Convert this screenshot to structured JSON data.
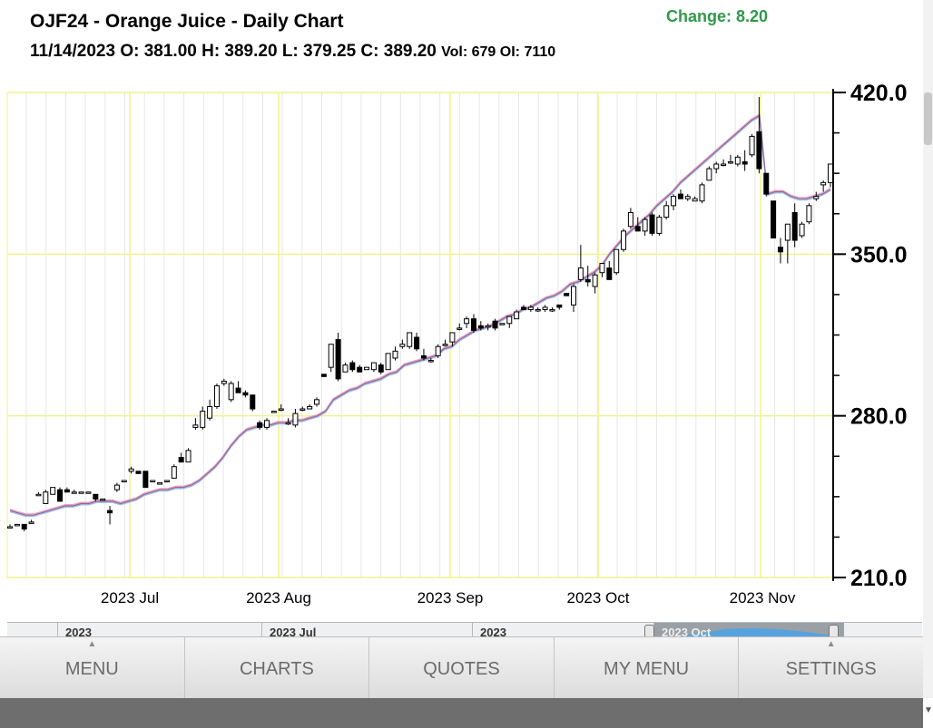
{
  "header": {
    "title": "OJF24 - Orange Juice - Daily Chart",
    "change": "Change: 8.20",
    "ohlc": "11/14/2023 O: 381.00 H: 389.20 L: 379.25 C: 389.20",
    "vol_oi": "Vol: 679 OI: 7110"
  },
  "colors": {
    "change": "#2e9a48",
    "grid_major": "#f2f28c",
    "grid_minor": "#e6e6e6",
    "ma_fast": "#f0a0b8",
    "ma_slow": "#a0c0e8",
    "ma_main": "#8a6aa0"
  },
  "chart_data": {
    "type": "candlestick",
    "y_axis_labels": [
      "420.0",
      "350.0",
      "280.0",
      "210.0"
    ],
    "ylim": [
      210,
      420
    ],
    "x_axis_labels": [
      "2023 Jul",
      "2023 Aug",
      "2023 Sep",
      "2023 Oct",
      "2023 Nov"
    ],
    "moving_average": [
      239,
      238,
      237,
      237,
      238,
      239,
      240,
      241,
      241,
      242,
      242,
      243,
      243,
      243,
      242,
      243,
      244,
      246,
      247,
      248,
      248,
      249,
      249,
      250,
      252,
      255,
      258,
      262,
      267,
      271,
      274,
      275,
      276,
      276,
      277,
      277,
      278,
      278,
      279,
      280,
      282,
      287,
      289,
      291,
      292,
      294,
      295,
      296,
      298,
      299,
      302,
      303,
      304,
      305,
      306,
      309,
      310,
      313,
      315,
      317,
      318,
      319,
      321,
      323,
      324,
      326,
      327,
      329,
      331,
      332,
      334,
      337,
      338,
      340,
      342,
      345,
      350,
      354,
      358,
      361,
      364,
      367,
      371,
      374,
      377,
      381,
      384,
      387,
      390,
      393,
      396,
      399,
      402,
      405,
      408,
      410,
      376,
      377,
      377,
      375,
      374,
      374,
      375,
      376,
      378
    ],
    "candles": [
      {
        "o": 232,
        "h": 233,
        "l": 232,
        "c": 232
      },
      {
        "o": 233,
        "h": 233,
        "l": 233,
        "c": 233
      },
      {
        "o": 233,
        "h": 233,
        "l": 230,
        "c": 231
      },
      {
        "o": 234,
        "h": 235,
        "l": 234,
        "c": 234
      },
      {
        "o": 246,
        "h": 247,
        "l": 246,
        "c": 246
      },
      {
        "o": 242,
        "h": 248,
        "l": 242,
        "c": 247
      },
      {
        "o": 246,
        "h": 249,
        "l": 246,
        "c": 249
      },
      {
        "o": 248,
        "h": 249,
        "l": 243,
        "c": 243
      },
      {
        "o": 248,
        "h": 249,
        "l": 248,
        "c": 247
      },
      {
        "o": 247,
        "h": 248,
        "l": 247,
        "c": 247
      },
      {
        "o": 247,
        "h": 247,
        "l": 247,
        "c": 247
      },
      {
        "o": 247,
        "h": 247,
        "l": 247,
        "c": 247
      },
      {
        "o": 246,
        "h": 246,
        "l": 243,
        "c": 244
      },
      {
        "o": 244,
        "h": 244,
        "l": 244,
        "c": 244
      },
      {
        "o": 239,
        "h": 241,
        "l": 233,
        "c": 238
      },
      {
        "o": 248,
        "h": 251,
        "l": 247,
        "c": 250
      },
      {
        "o": 252,
        "h": 252,
        "l": 252,
        "c": 252
      },
      {
        "o": 256,
        "h": 258,
        "l": 255,
        "c": 257
      },
      {
        "o": 256,
        "h": 256,
        "l": 255,
        "c": 255
      },
      {
        "o": 256,
        "h": 256,
        "l": 249,
        "c": 249
      },
      {
        "o": 252,
        "h": 252,
        "l": 252,
        "c": 252
      },
      {
        "o": 251,
        "h": 251,
        "l": 251,
        "c": 251
      },
      {
        "o": 252,
        "h": 252,
        "l": 252,
        "c": 252
      },
      {
        "o": 253,
        "h": 259,
        "l": 253,
        "c": 258
      },
      {
        "o": 262,
        "h": 264,
        "l": 260,
        "c": 260
      },
      {
        "o": 260,
        "h": 266,
        "l": 260,
        "c": 265
      },
      {
        "o": 275,
        "h": 279,
        "l": 274,
        "c": 276
      },
      {
        "o": 275,
        "h": 284,
        "l": 274,
        "c": 282
      },
      {
        "o": 279,
        "h": 287,
        "l": 278,
        "c": 284
      },
      {
        "o": 284,
        "h": 294,
        "l": 283,
        "c": 293
      },
      {
        "o": 294,
        "h": 296,
        "l": 293,
        "c": 295
      },
      {
        "o": 287,
        "h": 295,
        "l": 286,
        "c": 294
      },
      {
        "o": 292,
        "h": 295,
        "l": 291,
        "c": 290
      },
      {
        "o": 290,
        "h": 291,
        "l": 288,
        "c": 289
      },
      {
        "o": 289,
        "h": 289,
        "l": 282,
        "c": 283
      },
      {
        "o": 277,
        "h": 278,
        "l": 274,
        "c": 275
      },
      {
        "o": 275,
        "h": 279,
        "l": 274,
        "c": 278
      },
      {
        "o": 282,
        "h": 282,
        "l": 282,
        "c": 282
      },
      {
        "o": 283,
        "h": 285,
        "l": 282,
        "c": 283
      },
      {
        "o": 277,
        "h": 279,
        "l": 276,
        "c": 277
      },
      {
        "o": 276,
        "h": 283,
        "l": 275,
        "c": 281
      },
      {
        "o": 283,
        "h": 284,
        "l": 282,
        "c": 283
      },
      {
        "o": 283,
        "h": 285,
        "l": 283,
        "c": 284
      },
      {
        "o": 285,
        "h": 288,
        "l": 284,
        "c": 287
      },
      {
        "o": 298,
        "h": 298,
        "l": 297,
        "c": 297
      },
      {
        "o": 301,
        "h": 311,
        "l": 299,
        "c": 311
      },
      {
        "o": 313,
        "h": 316,
        "l": 295,
        "c": 296
      },
      {
        "o": 299,
        "h": 303,
        "l": 299,
        "c": 302
      },
      {
        "o": 303,
        "h": 304,
        "l": 299,
        "c": 300
      },
      {
        "o": 301,
        "h": 302,
        "l": 299,
        "c": 299
      },
      {
        "o": 300,
        "h": 301,
        "l": 300,
        "c": 301
      },
      {
        "o": 300,
        "h": 303,
        "l": 299,
        "c": 303
      },
      {
        "o": 302,
        "h": 303,
        "l": 298,
        "c": 299
      },
      {
        "o": 300,
        "h": 307,
        "l": 300,
        "c": 307
      },
      {
        "o": 305,
        "h": 310,
        "l": 304,
        "c": 308
      },
      {
        "o": 310,
        "h": 313,
        "l": 309,
        "c": 311
      },
      {
        "o": 310,
        "h": 316,
        "l": 309,
        "c": 316
      },
      {
        "o": 314,
        "h": 316,
        "l": 308,
        "c": 309
      },
      {
        "o": 306,
        "h": 309,
        "l": 304,
        "c": 305
      },
      {
        "o": 304,
        "h": 305,
        "l": 303,
        "c": 304
      },
      {
        "o": 306,
        "h": 311,
        "l": 305,
        "c": 310
      },
      {
        "o": 311,
        "h": 313,
        "l": 310,
        "c": 311
      },
      {
        "o": 312,
        "h": 316,
        "l": 310,
        "c": 316
      },
      {
        "o": 318,
        "h": 320,
        "l": 317,
        "c": 318
      },
      {
        "o": 320,
        "h": 323,
        "l": 318,
        "c": 322
      },
      {
        "o": 322,
        "h": 324,
        "l": 316,
        "c": 317
      },
      {
        "o": 319,
        "h": 321,
        "l": 317,
        "c": 318
      },
      {
        "o": 319,
        "h": 320,
        "l": 317,
        "c": 319
      },
      {
        "o": 321,
        "h": 322,
        "l": 317,
        "c": 318
      },
      {
        "o": 320,
        "h": 320,
        "l": 320,
        "c": 320
      },
      {
        "o": 320,
        "h": 323,
        "l": 318,
        "c": 323
      },
      {
        "o": 322,
        "h": 326,
        "l": 322,
        "c": 325
      },
      {
        "o": 327,
        "h": 328,
        "l": 326,
        "c": 326
      },
      {
        "o": 326,
        "h": 328,
        "l": 325,
        "c": 327
      },
      {
        "o": 326,
        "h": 327,
        "l": 325,
        "c": 326
      },
      {
        "o": 326,
        "h": 328,
        "l": 325,
        "c": 327
      },
      {
        "o": 326,
        "h": 327,
        "l": 325,
        "c": 326
      },
      {
        "o": 328,
        "h": 328,
        "l": 326,
        "c": 327
      },
      {
        "o": 333,
        "h": 333,
        "l": 332,
        "c": 332
      },
      {
        "o": 328,
        "h": 337,
        "l": 325,
        "c": 336
      },
      {
        "o": 339,
        "h": 354,
        "l": 338,
        "c": 344
      },
      {
        "o": 339,
        "h": 345,
        "l": 336,
        "c": 338
      },
      {
        "o": 336,
        "h": 342,
        "l": 333,
        "c": 341
      },
      {
        "o": 342,
        "h": 346,
        "l": 340,
        "c": 346
      },
      {
        "o": 344,
        "h": 347,
        "l": 339,
        "c": 339
      },
      {
        "o": 342,
        "h": 352,
        "l": 341,
        "c": 352
      },
      {
        "o": 352,
        "h": 361,
        "l": 351,
        "c": 360
      },
      {
        "o": 362,
        "h": 370,
        "l": 361,
        "c": 368
      },
      {
        "o": 362,
        "h": 366,
        "l": 360,
        "c": 360
      },
      {
        "o": 360,
        "h": 366,
        "l": 358,
        "c": 365
      },
      {
        "o": 367,
        "h": 368,
        "l": 358,
        "c": 359
      },
      {
        "o": 359,
        "h": 367,
        "l": 358,
        "c": 366
      },
      {
        "o": 366,
        "h": 373,
        "l": 365,
        "c": 371
      },
      {
        "o": 371,
        "h": 376,
        "l": 369,
        "c": 375
      },
      {
        "o": 376,
        "h": 378,
        "l": 374,
        "c": 374
      },
      {
        "o": 374,
        "h": 376,
        "l": 373,
        "c": 375
      },
      {
        "o": 373,
        "h": 375,
        "l": 373,
        "c": 374
      },
      {
        "o": 373,
        "h": 381,
        "l": 372,
        "c": 380
      },
      {
        "o": 382,
        "h": 388,
        "l": 382,
        "c": 387
      },
      {
        "o": 387,
        "h": 390,
        "l": 385,
        "c": 389
      },
      {
        "o": 389,
        "h": 391,
        "l": 388,
        "c": 389
      },
      {
        "o": 390,
        "h": 393,
        "l": 389,
        "c": 390
      },
      {
        "o": 389,
        "h": 393,
        "l": 388,
        "c": 392
      },
      {
        "o": 390,
        "h": 395,
        "l": 386,
        "c": 389
      },
      {
        "o": 393,
        "h": 402,
        "l": 392,
        "c": 401
      },
      {
        "o": 403,
        "h": 418,
        "l": 385,
        "c": 387
      },
      {
        "o": 385,
        "h": 385,
        "l": 375,
        "c": 376
      },
      {
        "o": 373,
        "h": 373,
        "l": 357,
        "c": 357
      },
      {
        "o": 353,
        "h": 357,
        "l": 346,
        "c": 351
      },
      {
        "o": 356,
        "h": 363,
        "l": 346,
        "c": 363
      },
      {
        "o": 368,
        "h": 372,
        "l": 353,
        "c": 356
      },
      {
        "o": 358,
        "h": 364,
        "l": 357,
        "c": 363
      },
      {
        "o": 364,
        "h": 372,
        "l": 363,
        "c": 371
      },
      {
        "o": 374,
        "h": 377,
        "l": 373,
        "c": 375
      },
      {
        "o": 380,
        "h": 382,
        "l": 377,
        "c": 381
      },
      {
        "o": 381,
        "h": 389,
        "l": 379,
        "c": 389
      }
    ]
  },
  "navigator": {
    "cells": [
      "2023",
      "2023 Jul",
      "2023",
      "2023 Oct"
    ]
  },
  "menu": {
    "items": [
      "MENU",
      "CHARTS",
      "QUOTES",
      "MY MENU",
      "SETTINGS"
    ]
  }
}
